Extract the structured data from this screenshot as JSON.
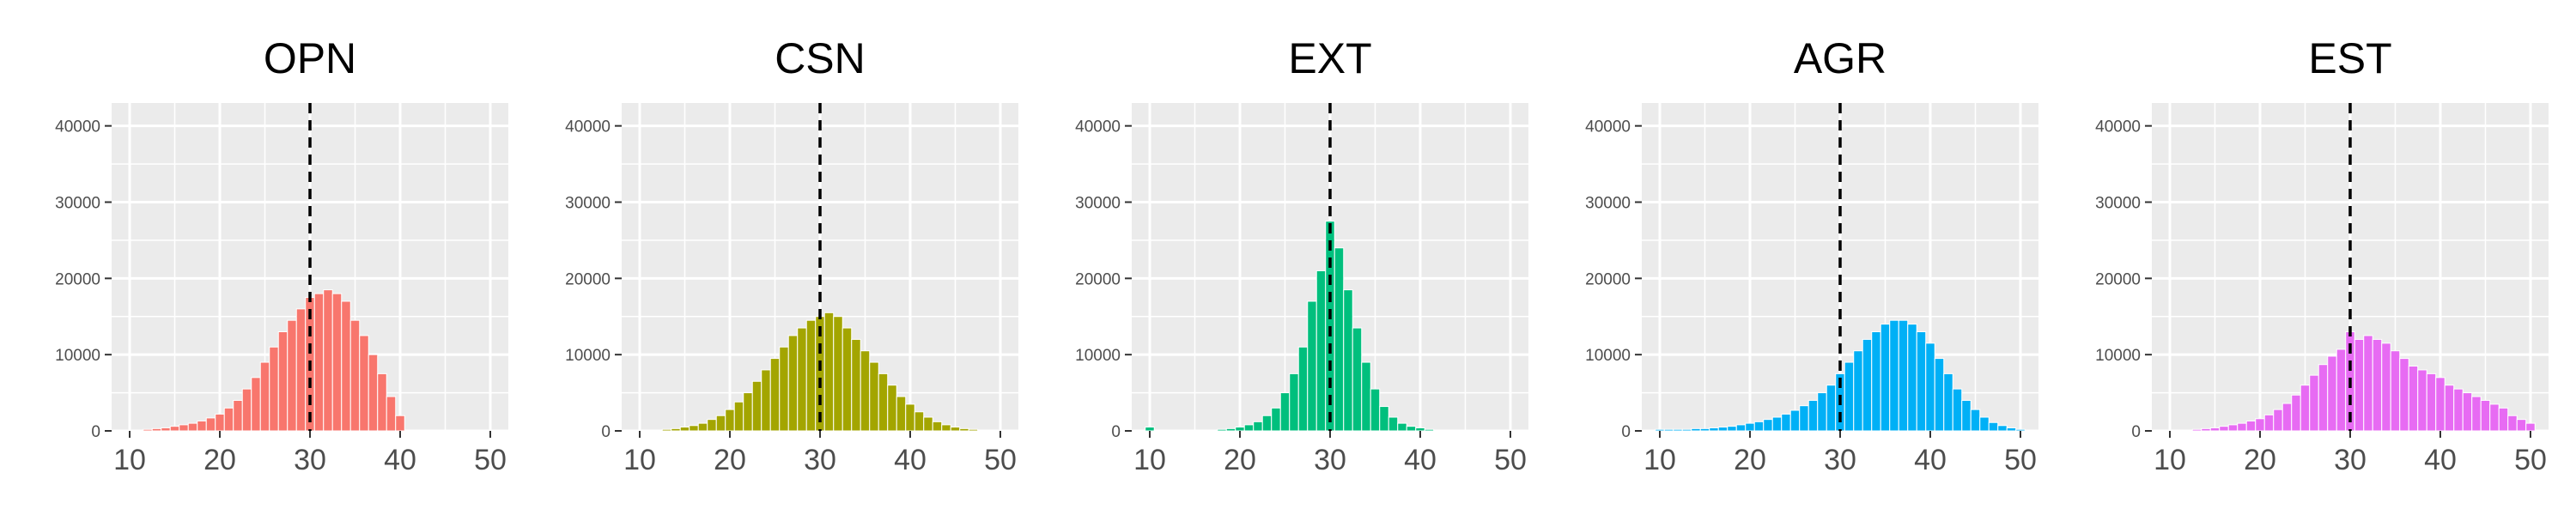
{
  "chart_data": [
    {
      "type": "bar",
      "title": "OPN",
      "color": "#F8766D",
      "ref_line": 30,
      "xlim": [
        10,
        50
      ],
      "ylim": [
        0,
        43000
      ],
      "xticks": [
        "10",
        "20",
        "30",
        "40",
        "50"
      ],
      "yticks": [
        "0",
        "10000",
        "20000",
        "30000",
        "40000"
      ],
      "x": [
        10,
        11,
        12,
        13,
        14,
        15,
        16,
        17,
        18,
        19,
        20,
        21,
        22,
        23,
        24,
        25,
        26,
        27,
        28,
        29,
        30,
        31,
        32,
        33,
        34,
        35,
        36,
        37,
        38,
        39,
        40,
        41,
        42,
        43,
        44,
        45,
        46,
        47,
        48,
        49,
        50
      ],
      "values": [
        0,
        0,
        200,
        300,
        400,
        600,
        800,
        1000,
        1300,
        1700,
        2200,
        3000,
        4000,
        5500,
        7000,
        9000,
        11000,
        13000,
        14500,
        16000,
        17500,
        18000,
        18500,
        18000,
        17000,
        14500,
        12500,
        10000,
        7500,
        4500,
        2000,
        0,
        0,
        0,
        0,
        0,
        0,
        0,
        0,
        0,
        0
      ]
    },
    {
      "type": "bar",
      "title": "CSN",
      "color": "#A3A500",
      "ref_line": 30,
      "xlim": [
        10,
        50
      ],
      "ylim": [
        0,
        43000
      ],
      "xticks": [
        "10",
        "20",
        "30",
        "40",
        "50"
      ],
      "yticks": [
        "0",
        "10000",
        "20000",
        "30000",
        "40000"
      ],
      "x": [
        10,
        11,
        12,
        13,
        14,
        15,
        16,
        17,
        18,
        19,
        20,
        21,
        22,
        23,
        24,
        25,
        26,
        27,
        28,
        29,
        30,
        31,
        32,
        33,
        34,
        35,
        36,
        37,
        38,
        39,
        40,
        41,
        42,
        43,
        44,
        45,
        46,
        47,
        48,
        49,
        50
      ],
      "values": [
        0,
        0,
        100,
        200,
        300,
        500,
        700,
        1000,
        1500,
        2000,
        2800,
        3800,
        5000,
        6500,
        8000,
        9500,
        11000,
        12500,
        13500,
        14500,
        15000,
        15500,
        15000,
        13500,
        12000,
        10500,
        9000,
        7500,
        6000,
        4500,
        3500,
        2500,
        1800,
        1200,
        800,
        500,
        300,
        200,
        100,
        0,
        0
      ]
    },
    {
      "type": "bar",
      "title": "EXT",
      "color": "#00BF7D",
      "ref_line": 30,
      "xlim": [
        10,
        50
      ],
      "ylim": [
        0,
        43000
      ],
      "xticks": [
        "10",
        "20",
        "30",
        "40",
        "50"
      ],
      "yticks": [
        "0",
        "10000",
        "20000",
        "30000",
        "40000"
      ],
      "x": [
        10,
        11,
        12,
        13,
        14,
        15,
        16,
        17,
        18,
        19,
        20,
        21,
        22,
        23,
        24,
        25,
        26,
        27,
        28,
        29,
        30,
        31,
        32,
        33,
        34,
        35,
        36,
        37,
        38,
        39,
        40,
        41,
        42,
        43,
        44,
        45,
        46,
        47,
        48,
        49,
        50
      ],
      "values": [
        500,
        100,
        100,
        100,
        100,
        100,
        100,
        100,
        200,
        300,
        500,
        800,
        1200,
        2000,
        3000,
        5000,
        7500,
        11000,
        17000,
        21000,
        27500,
        24000,
        18500,
        13500,
        9000,
        5500,
        3200,
        1800,
        1000,
        600,
        400,
        200,
        100,
        100,
        0,
        0,
        0,
        0,
        0,
        0,
        0
      ]
    },
    {
      "type": "bar",
      "title": "AGR",
      "color": "#00B0F6",
      "ref_line": 30,
      "xlim": [
        10,
        50
      ],
      "ylim": [
        0,
        43000
      ],
      "xticks": [
        "10",
        "20",
        "30",
        "40",
        "50"
      ],
      "yticks": [
        "0",
        "10000",
        "20000",
        "30000",
        "40000"
      ],
      "x": [
        10,
        11,
        12,
        13,
        14,
        15,
        16,
        17,
        18,
        19,
        20,
        21,
        22,
        23,
        24,
        25,
        26,
        27,
        28,
        29,
        30,
        31,
        32,
        33,
        34,
        35,
        36,
        37,
        38,
        39,
        40,
        41,
        42,
        43,
        44,
        45,
        46,
        47,
        48,
        49,
        50
      ],
      "values": [
        200,
        200,
        200,
        200,
        300,
        300,
        400,
        500,
        600,
        800,
        1000,
        1200,
        1500,
        1800,
        2200,
        2700,
        3300,
        4000,
        5000,
        6000,
        7500,
        9000,
        10500,
        12000,
        13000,
        14000,
        14500,
        14500,
        14000,
        13000,
        11500,
        9500,
        7500,
        5500,
        4000,
        2800,
        1800,
        1100,
        700,
        400,
        200
      ]
    },
    {
      "type": "bar",
      "title": "EST",
      "color": "#E76BF3",
      "ref_line": 30,
      "xlim": [
        10,
        50
      ],
      "ylim": [
        0,
        43000
      ],
      "xticks": [
        "10",
        "20",
        "30",
        "40",
        "50"
      ],
      "yticks": [
        "0",
        "10000",
        "20000",
        "30000",
        "40000"
      ],
      "x": [
        10,
        11,
        12,
        13,
        14,
        15,
        16,
        17,
        18,
        19,
        20,
        21,
        22,
        23,
        24,
        25,
        26,
        27,
        28,
        29,
        30,
        31,
        32,
        33,
        34,
        35,
        36,
        37,
        38,
        39,
        40,
        41,
        42,
        43,
        44,
        45,
        46,
        47,
        48,
        49,
        50
      ],
      "values": [
        0,
        0,
        0,
        200,
        300,
        400,
        600,
        800,
        1000,
        1300,
        1600,
        2100,
        2800,
        3600,
        4700,
        6000,
        7300,
        8700,
        9800,
        10700,
        13000,
        12000,
        12500,
        12000,
        11500,
        10500,
        9500,
        8500,
        8000,
        7500,
        7000,
        6000,
        5500,
        5000,
        4500,
        4000,
        3500,
        3000,
        2000,
        1500,
        1000
      ]
    }
  ]
}
